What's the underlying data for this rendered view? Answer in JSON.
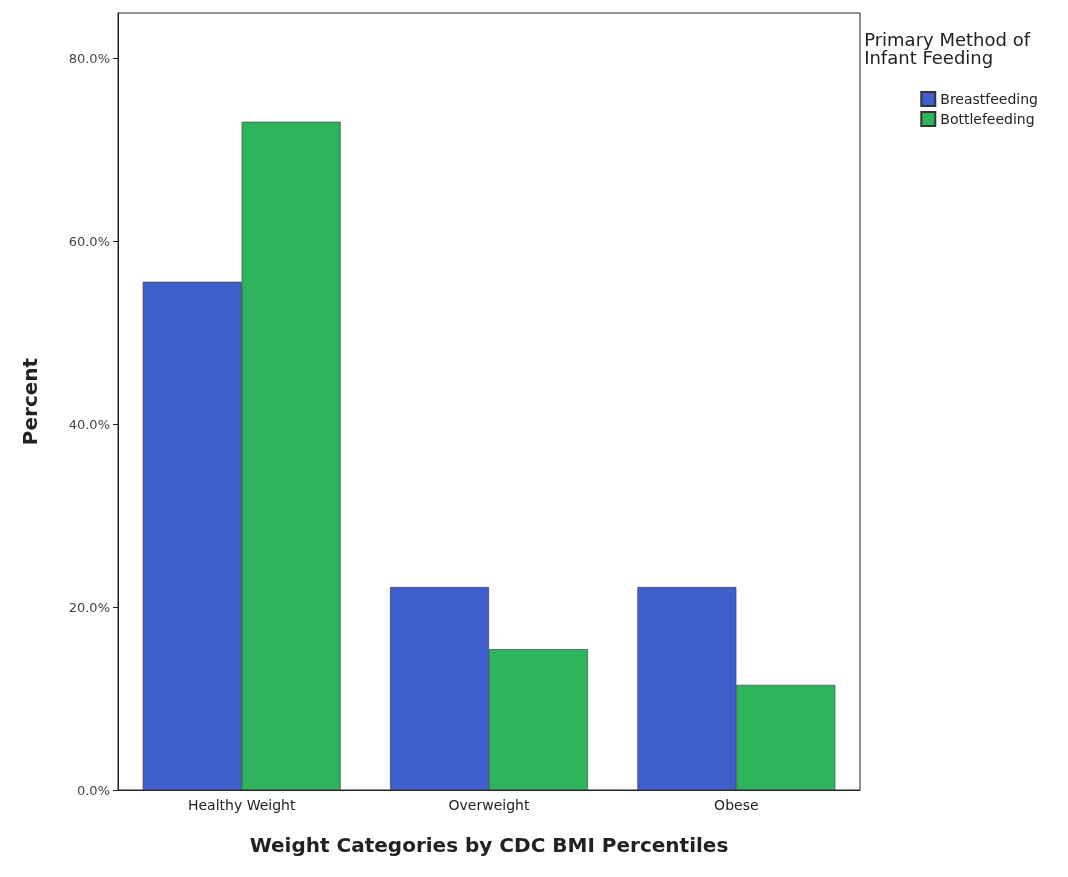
{
  "chart_data": {
    "type": "bar",
    "xlabel": "Weight Categories by CDC BMI Percentiles",
    "ylabel": "Percent",
    "legend_title": "Primary Method of\nInfant Feeding",
    "categories": [
      "Healthy Weight",
      "Overweight",
      "Obese"
    ],
    "series": [
      {
        "name": "Breastfeeding",
        "color": "#3f5fcf",
        "values": [
          55.6,
          22.2,
          22.2
        ]
      },
      {
        "name": "Bottlefeeding",
        "color": "#2fb45e",
        "values": [
          73.1,
          15.4,
          11.5
        ]
      }
    ],
    "ylim": [
      0,
      85
    ],
    "yticks": [
      {
        "value": 0,
        "label": "0.0%"
      },
      {
        "value": 20,
        "label": "20.0%"
      },
      {
        "value": 40,
        "label": "40.0%"
      },
      {
        "value": 60,
        "label": "60.0%"
      },
      {
        "value": 80,
        "label": "80.0%"
      }
    ],
    "grid": false,
    "legend": "top right"
  }
}
